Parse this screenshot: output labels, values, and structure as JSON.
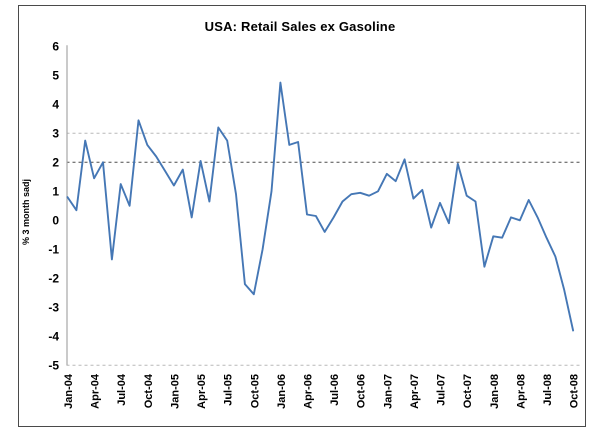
{
  "window": {
    "background": "#ffffff",
    "frame_border_color": "#4a4a4a"
  },
  "chart_data": {
    "type": "line",
    "title": "USA: Retail Sales ex Gasoline",
    "xlabel": "",
    "ylabel": "% 3 month sadj",
    "ylim": [
      -5,
      6
    ],
    "y_ticks": [
      6,
      5,
      4,
      3,
      2,
      1,
      0,
      -1,
      -2,
      -3,
      -4,
      -5
    ],
    "x_tick_labels": [
      "Jan-04",
      "Apr-04",
      "Jul-04",
      "Oct-04",
      "Jan-05",
      "Apr-05",
      "Jul-05",
      "Oct-05",
      "Jan-06",
      "Apr-06",
      "Jul-06",
      "Oct-06",
      "Jan-07",
      "Apr-07",
      "Jul-07",
      "Oct-07",
      "Jan-08",
      "Apr-08",
      "Jul-08",
      "Oct-08"
    ],
    "x_tick_every_months": 3,
    "x": [
      "Jan-04",
      "Feb-04",
      "Mar-04",
      "Apr-04",
      "May-04",
      "Jun-04",
      "Jul-04",
      "Aug-04",
      "Sep-04",
      "Oct-04",
      "Nov-04",
      "Dec-04",
      "Jan-05",
      "Feb-05",
      "Mar-05",
      "Apr-05",
      "May-05",
      "Jun-05",
      "Jul-05",
      "Aug-05",
      "Sep-05",
      "Oct-05",
      "Nov-05",
      "Dec-05",
      "Jan-06",
      "Feb-06",
      "Mar-06",
      "Apr-06",
      "May-06",
      "Jun-06",
      "Jul-06",
      "Aug-06",
      "Sep-06",
      "Oct-06",
      "Nov-06",
      "Dec-06",
      "Jan-07",
      "Feb-07",
      "Mar-07",
      "Apr-07",
      "May-07",
      "Jun-07",
      "Jul-07",
      "Aug-07",
      "Sep-07",
      "Oct-07",
      "Nov-07",
      "Dec-07",
      "Jan-08",
      "Feb-08",
      "Mar-08",
      "Apr-08",
      "May-08",
      "Jun-08",
      "Jul-08",
      "Aug-08",
      "Sep-08",
      "Oct-08"
    ],
    "values": [
      0.8,
      0.35,
      2.75,
      1.45,
      2.0,
      -1.35,
      1.25,
      0.5,
      3.45,
      2.6,
      2.2,
      1.7,
      1.2,
      1.75,
      0.1,
      2.05,
      0.65,
      3.2,
      2.75,
      0.9,
      -2.2,
      -2.55,
      -1.0,
      1.0,
      4.75,
      2.6,
      2.7,
      0.2,
      0.15,
      -0.4,
      0.1,
      0.65,
      0.9,
      0.95,
      0.85,
      1.0,
      1.6,
      1.35,
      2.1,
      0.75,
      1.05,
      -0.25,
      0.6,
      -0.1,
      1.95,
      0.85,
      0.65,
      -1.6,
      -0.55,
      -0.6,
      0.1,
      0.0,
      0.7,
      0.1,
      -0.6,
      -1.25,
      -2.4,
      -3.8
    ],
    "line_color": "#4577b5",
    "axis_color": "#a6a6a6",
    "gridlines": [
      {
        "y": 3,
        "color": "#b8b8b8",
        "style": "dotted"
      },
      {
        "y": 2,
        "color": "#4d4d4d",
        "style": "dotted"
      },
      {
        "y": -5,
        "color": "#b8b8b8",
        "style": "dotted"
      }
    ],
    "legend": "none",
    "grid": "partial"
  }
}
